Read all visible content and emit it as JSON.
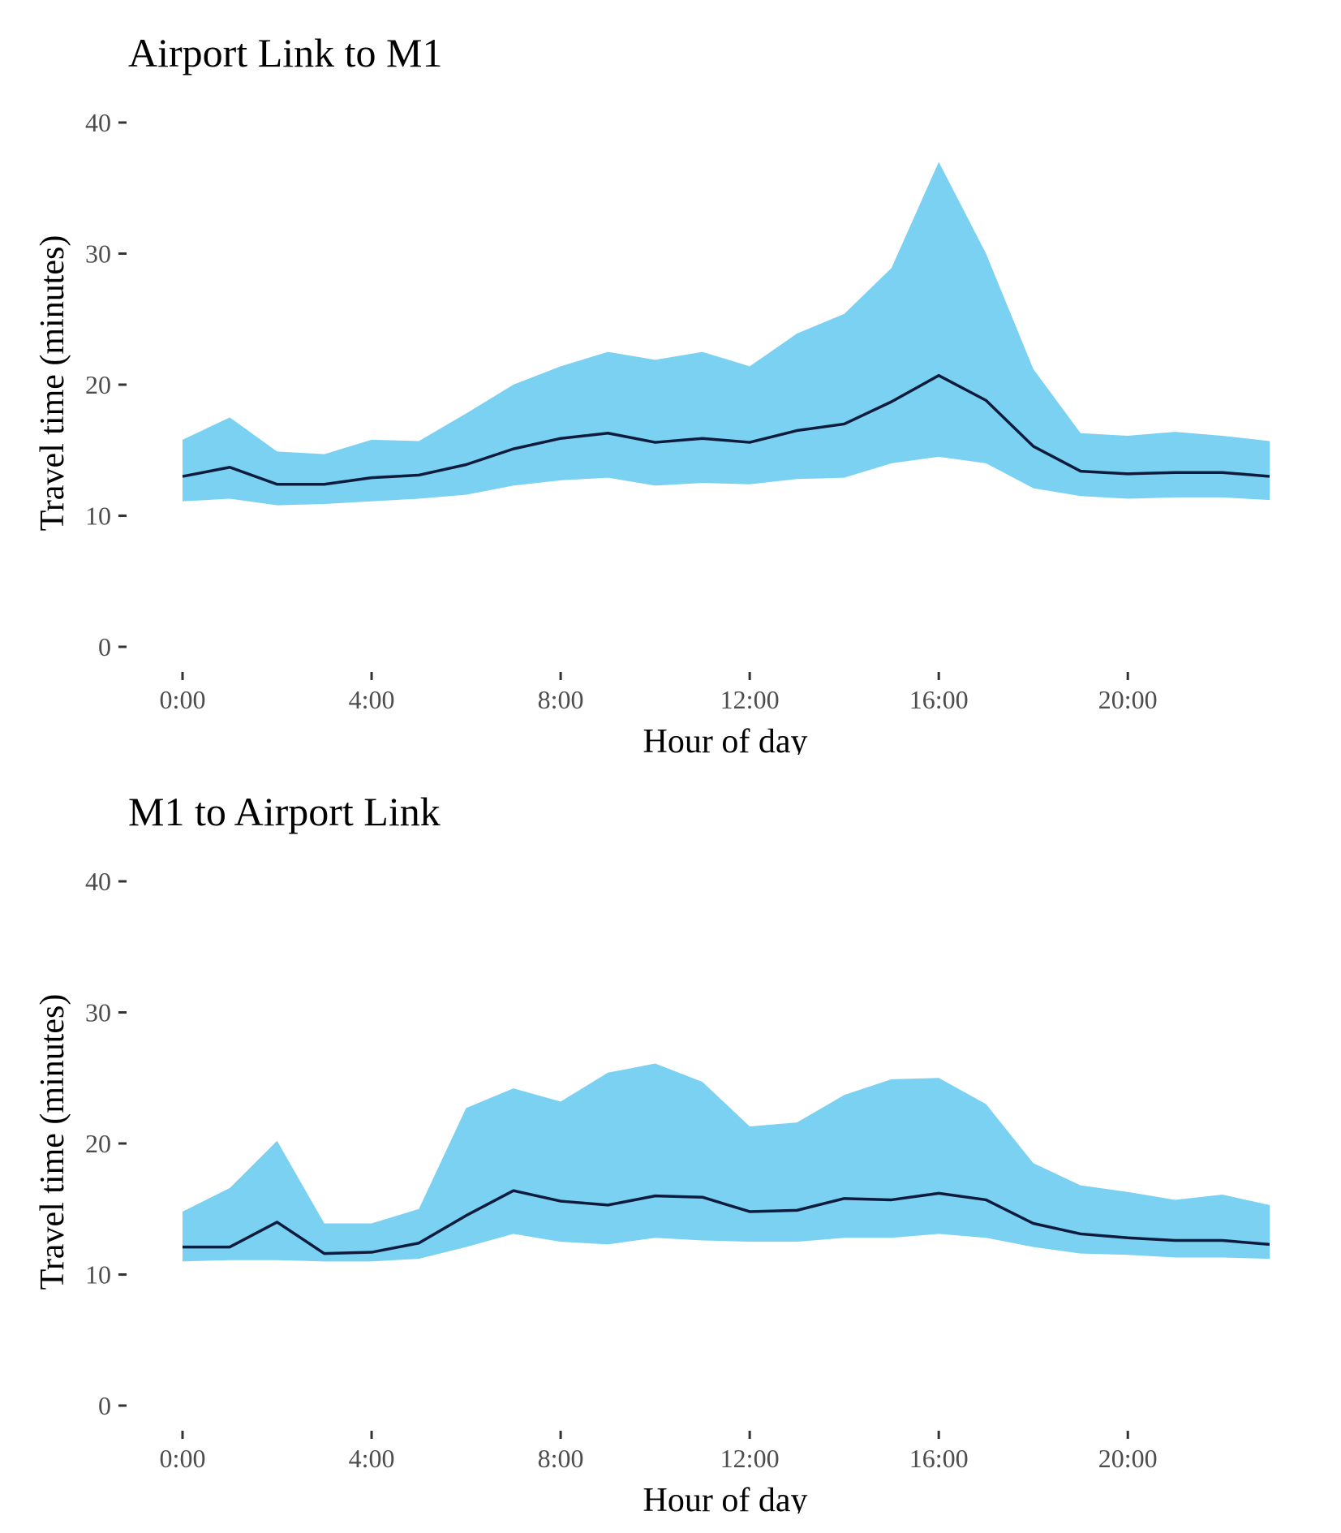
{
  "chart_data": [
    {
      "type": "area",
      "title": "Airport Link to M1",
      "xlabel": "Hour of day",
      "ylabel": "Travel time (minutes)",
      "ylim": [
        0,
        40
      ],
      "yticks": [
        0,
        10,
        20,
        30,
        40
      ],
      "xlim": [
        0,
        23
      ],
      "xticks": [
        0,
        4,
        8,
        12,
        16,
        20
      ],
      "xtick_labels": [
        "0:00",
        "4:00",
        "8:00",
        "12:00",
        "16:00",
        "20:00"
      ],
      "grid": false,
      "x": [
        0,
        1,
        2,
        3,
        4,
        5,
        6,
        7,
        8,
        9,
        10,
        11,
        12,
        13,
        14,
        15,
        16,
        17,
        18,
        19,
        20,
        21,
        22,
        23
      ],
      "series": [
        {
          "type": "band",
          "color": "#7AD1F2",
          "upper": [
            15.8,
            17.5,
            14.9,
            14.7,
            15.8,
            15.7,
            17.8,
            20.0,
            21.4,
            22.5,
            21.9,
            22.5,
            21.4,
            23.9,
            25.4,
            28.9,
            37.0,
            30.0,
            21.2,
            16.3,
            16.1,
            16.4,
            16.1,
            15.7
          ],
          "lower": [
            11.1,
            11.3,
            10.8,
            10.9,
            11.1,
            11.3,
            11.6,
            12.3,
            12.7,
            12.9,
            12.3,
            12.5,
            12.4,
            12.8,
            12.9,
            14.0,
            14.5,
            14.0,
            12.1,
            11.5,
            11.3,
            11.4,
            11.4,
            11.2
          ]
        },
        {
          "type": "line",
          "color": "#0F1B3D",
          "values": [
            13.0,
            13.7,
            12.4,
            12.4,
            12.9,
            13.1,
            13.9,
            15.1,
            15.9,
            16.3,
            15.6,
            15.9,
            15.6,
            16.5,
            17.0,
            18.7,
            20.7,
            18.8,
            15.3,
            13.4,
            13.2,
            13.3,
            13.3,
            13.0
          ]
        }
      ]
    },
    {
      "type": "area",
      "title": "M1 to Airport Link",
      "xlabel": "Hour of day",
      "ylabel": "Travel time (minutes)",
      "ylim": [
        0,
        40
      ],
      "yticks": [
        0,
        10,
        20,
        30,
        40
      ],
      "xlim": [
        0,
        23
      ],
      "xticks": [
        0,
        4,
        8,
        12,
        16,
        20
      ],
      "xtick_labels": [
        "0:00",
        "4:00",
        "8:00",
        "12:00",
        "16:00",
        "20:00"
      ],
      "grid": false,
      "x": [
        0,
        1,
        2,
        3,
        4,
        5,
        6,
        7,
        8,
        9,
        10,
        11,
        12,
        13,
        14,
        15,
        16,
        17,
        18,
        19,
        20,
        21,
        22,
        23
      ],
      "series": [
        {
          "type": "band",
          "color": "#7AD1F2",
          "upper": [
            14.8,
            16.6,
            20.2,
            13.9,
            13.9,
            15.0,
            22.7,
            24.2,
            23.2,
            25.4,
            26.1,
            24.7,
            21.3,
            21.6,
            23.7,
            24.9,
            25.0,
            23.0,
            18.5,
            16.8,
            16.3,
            15.7,
            16.1,
            15.3
          ],
          "lower": [
            11.0,
            11.1,
            11.1,
            11.0,
            11.0,
            11.2,
            12.1,
            13.1,
            12.5,
            12.3,
            12.8,
            12.6,
            12.5,
            12.5,
            12.8,
            12.8,
            13.1,
            12.8,
            12.1,
            11.6,
            11.5,
            11.3,
            11.3,
            11.2
          ]
        },
        {
          "type": "line",
          "color": "#0F1B3D",
          "values": [
            12.1,
            12.1,
            14.0,
            11.6,
            11.7,
            12.4,
            14.5,
            16.4,
            15.6,
            15.3,
            16.0,
            15.9,
            14.8,
            14.9,
            15.8,
            15.7,
            16.2,
            15.7,
            13.9,
            13.1,
            12.8,
            12.6,
            12.6,
            12.3
          ]
        }
      ]
    }
  ]
}
